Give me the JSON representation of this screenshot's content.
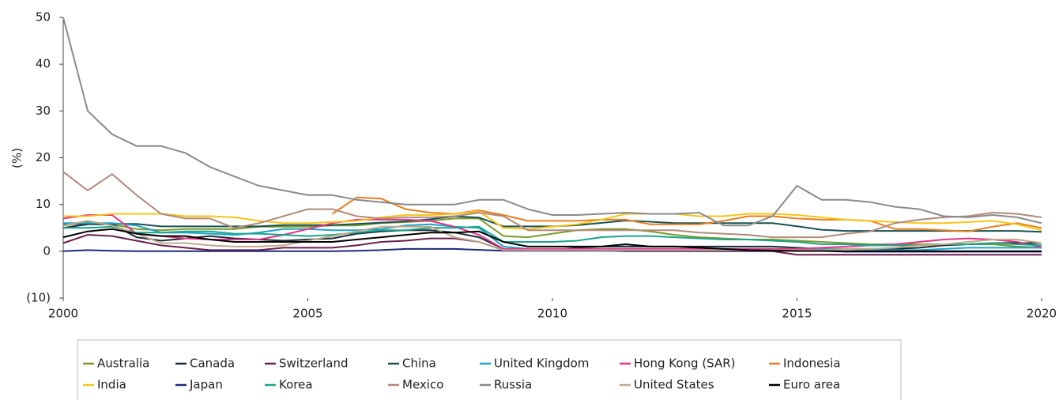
{
  "chart_data": {
    "type": "line",
    "y_label": "(%)",
    "x": [
      2000,
      2000.5,
      2001,
      2001.5,
      2002,
      2002.5,
      2003,
      2003.5,
      2004,
      2004.5,
      2005,
      2005.5,
      2006,
      2006.5,
      2007,
      2007.5,
      2008,
      2008.5,
      2009,
      2009.5,
      2010,
      2010.5,
      2011,
      2011.5,
      2012,
      2012.5,
      2013,
      2013.5,
      2014,
      2014.5,
      2015,
      2015.5,
      2016,
      2016.5,
      2017,
      2017.5,
      2018,
      2018.5,
      2019,
      2019.5,
      2020
    ],
    "xlim": [
      2000,
      2020
    ],
    "xticks": [
      2000,
      2005,
      2010,
      2015,
      2020
    ],
    "ylim": [
      -10,
      50
    ],
    "yticks": [
      {
        "value": -10,
        "label": "(10)"
      },
      0,
      10,
      20,
      30,
      40,
      50
    ],
    "grid": false,
    "legend": "bottom",
    "series": [
      {
        "name": "Australia",
        "color": "#7a9a2a",
        "values": [
          5.5,
          6.25,
          5.75,
          4.75,
          4.5,
          4.75,
          4.75,
          4.75,
          5.25,
          5.25,
          5.25,
          5.5,
          5.5,
          6,
          6.25,
          6.5,
          7,
          7,
          3.25,
          3,
          3.75,
          4.5,
          4.75,
          4.75,
          4.25,
          3.5,
          3,
          2.75,
          2.5,
          2.5,
          2.25,
          2,
          1.75,
          1.5,
          1.5,
          1.5,
          1.5,
          1.5,
          1.5,
          1,
          0.75
        ]
      },
      {
        "name": "Canada",
        "color": "#1b2b38",
        "values": [
          5,
          5.75,
          5.75,
          3,
          2.25,
          2.75,
          3.25,
          2.75,
          2.5,
          2.25,
          2.5,
          2.75,
          3.75,
          4.25,
          4.5,
          4.5,
          4,
          3,
          0.5,
          0.25,
          0.25,
          0.75,
          1,
          1,
          1,
          1,
          1,
          1,
          1,
          1,
          0.75,
          0.5,
          0.5,
          0.5,
          0.5,
          0.75,
          1.25,
          1.5,
          1.75,
          1.75,
          1.75
        ]
      },
      {
        "name": "Switzerland",
        "color": "#6b1f4c",
        "values": [
          1.75,
          3.5,
          3.25,
          2.25,
          1.25,
          0.75,
          0.25,
          0.25,
          0.25,
          0.75,
          0.75,
          0.75,
          1.25,
          2,
          2.25,
          2.75,
          2.75,
          2,
          0.25,
          0.25,
          0.25,
          0.25,
          0.25,
          0,
          0,
          0,
          0,
          0,
          0,
          0,
          -0.75,
          -0.75,
          -0.75,
          -0.75,
          -0.75,
          -0.75,
          -0.75,
          -0.75,
          -0.75,
          -0.75,
          -0.75
        ]
      },
      {
        "name": "China",
        "color": "#1a5252",
        "values": [
          5.85,
          5.85,
          5.85,
          5.85,
          5.31,
          5.31,
          5.31,
          5.31,
          5.31,
          5.58,
          5.58,
          5.58,
          5.85,
          6.12,
          6.39,
          6.84,
          7.47,
          7.2,
          5.31,
          5.31,
          5.31,
          5.56,
          6.06,
          6.56,
          6.31,
          6,
          6,
          6,
          6,
          6,
          5.35,
          4.6,
          4.35,
          4.35,
          4.35,
          4.35,
          4.35,
          4.35,
          4.35,
          4.35,
          4.15
        ]
      },
      {
        "name": "United Kingdom",
        "color": "#1ea3c8",
        "values": [
          6,
          6,
          6,
          5.5,
          4,
          4,
          3.75,
          3.5,
          4,
          4.75,
          4.75,
          4.5,
          4.5,
          4.75,
          5.5,
          5.75,
          5.25,
          5,
          1,
          0.5,
          0.5,
          0.5,
          0.5,
          0.5,
          0.5,
          0.5,
          0.5,
          0.5,
          0.5,
          0.5,
          0.5,
          0.5,
          0.5,
          0.25,
          0.25,
          0.25,
          0.5,
          0.75,
          0.75,
          0.75,
          0.75
        ]
      },
      {
        "name": "Hong Kong (SAR)",
        "color": "#e6338a",
        "values": [
          7,
          7.75,
          7.75,
          3.75,
          3.25,
          2.75,
          2.5,
          2.5,
          2.5,
          3.5,
          4.75,
          6,
          6.75,
          6.75,
          6.75,
          6.5,
          5.25,
          3.5,
          0.5,
          0.5,
          0.5,
          0.5,
          0.5,
          0.5,
          0.5,
          0.5,
          0.5,
          0.5,
          0.5,
          0.5,
          0.5,
          0.75,
          1,
          1.25,
          1.5,
          2,
          2.5,
          2.75,
          2.5,
          2,
          0.86
        ]
      },
      {
        "name": "Indonesia",
        "color": "#e87d1e",
        "values": [
          null,
          null,
          null,
          null,
          null,
          null,
          null,
          null,
          null,
          null,
          null,
          8,
          11.5,
          11.25,
          9,
          8.25,
          8,
          8.75,
          7.75,
          6.5,
          6.5,
          6.5,
          6.75,
          6.75,
          5.75,
          5.75,
          5.75,
          6.5,
          7.5,
          7.5,
          7,
          6.75,
          6.75,
          6.5,
          4.75,
          4.75,
          4.5,
          4.25,
          5.25,
          6,
          5
        ]
      },
      {
        "name": "India",
        "color": "#f5c518",
        "values": [
          7.5,
          7.5,
          8,
          8,
          8,
          7.5,
          7.5,
          7.25,
          6.5,
          6,
          6,
          6.25,
          6.5,
          7.25,
          7.75,
          7.75,
          8,
          8.5,
          5,
          4.75,
          5.25,
          5.75,
          6.75,
          8,
          8,
          8,
          7.5,
          7.5,
          8,
          8,
          7.75,
          7.25,
          6.75,
          6.5,
          6.25,
          6,
          6,
          6.25,
          6.5,
          5.75,
          4.5
        ]
      },
      {
        "name": "Japan",
        "color": "#1f2a7a",
        "values": [
          0,
          0.25,
          0.1,
          0,
          0,
          0,
          0,
          0,
          0,
          0,
          0,
          0,
          0.1,
          0.25,
          0.5,
          0.5,
          0.5,
          0.3,
          0.1,
          0.1,
          0.1,
          0.1,
          0.1,
          0.1,
          0.1,
          0.1,
          0.1,
          0.1,
          0.1,
          0.1,
          0.1,
          0.1,
          -0.1,
          -0.1,
          -0.1,
          -0.1,
          -0.1,
          -0.1,
          -0.1,
          -0.1,
          -0.1
        ]
      },
      {
        "name": "Korea",
        "color": "#19a58c",
        "values": [
          5,
          5,
          5.25,
          4,
          4,
          4.25,
          4.25,
          3.75,
          3.75,
          3.5,
          3.25,
          3.5,
          4,
          4.5,
          4.5,
          5,
          5,
          5.25,
          2,
          2,
          2,
          2.25,
          3,
          3.25,
          3.25,
          3,
          2.75,
          2.5,
          2.5,
          2.25,
          2,
          1.5,
          1.5,
          1.25,
          1.25,
          1.25,
          1.5,
          1.5,
          1.75,
          1.5,
          1.25
        ]
      },
      {
        "name": "Mexico",
        "color": "#b08a7a",
        "values": [
          17,
          13,
          16.5,
          12,
          8,
          7,
          7,
          5,
          6,
          7.5,
          9,
          9,
          7.5,
          7,
          7.25,
          7.25,
          7.5,
          8.25,
          7.5,
          4.5,
          4.5,
          4.5,
          4.5,
          4.5,
          4.5,
          4.5,
          4,
          3.75,
          3.5,
          3,
          3,
          3,
          3.75,
          4.25,
          6,
          6.75,
          7.25,
          7.5,
          8.25,
          8,
          7.25
        ]
      },
      {
        "name": "Russia",
        "color": "#8a8a8a",
        "values": [
          50,
          30,
          25,
          22.5,
          22.5,
          21,
          18,
          16,
          14,
          13,
          12,
          12,
          11,
          10.5,
          10,
          10,
          10,
          11,
          11,
          9,
          7.75,
          7.75,
          8,
          8.25,
          8,
          8,
          8.25,
          5.5,
          5.5,
          7.5,
          14,
          11,
          11,
          10.5,
          9.5,
          9,
          7.5,
          7.25,
          7.75,
          7.25,
          6
        ]
      },
      {
        "name": "United States",
        "color": "#c2a88a",
        "values": [
          5.5,
          6.5,
          5.5,
          3.75,
          1.75,
          1.75,
          1.25,
          1,
          1,
          1.25,
          2.25,
          3.25,
          4.25,
          5.25,
          5.25,
          5.25,
          3,
          2,
          0.25,
          0.25,
          0.25,
          0.25,
          0.25,
          0.25,
          0.25,
          0.25,
          0.25,
          0.25,
          0.25,
          0.25,
          0.25,
          0.25,
          0.5,
          0.5,
          0.75,
          1.25,
          1.5,
          2,
          2.5,
          2.5,
          1.75
        ]
      },
      {
        "name": "Euro area",
        "color": "#000000",
        "values": [
          3,
          4.25,
          4.75,
          3.75,
          3.25,
          3.25,
          2.5,
          2,
          2,
          2,
          2,
          2,
          2.5,
          3,
          3.5,
          4,
          4,
          4.25,
          2,
          1,
          1,
          1,
          1,
          1.5,
          1,
          1,
          0.75,
          0.5,
          0.25,
          0.15,
          0.05,
          0.05,
          0,
          0,
          0,
          0,
          0,
          0,
          0,
          0,
          0
        ]
      }
    ]
  }
}
